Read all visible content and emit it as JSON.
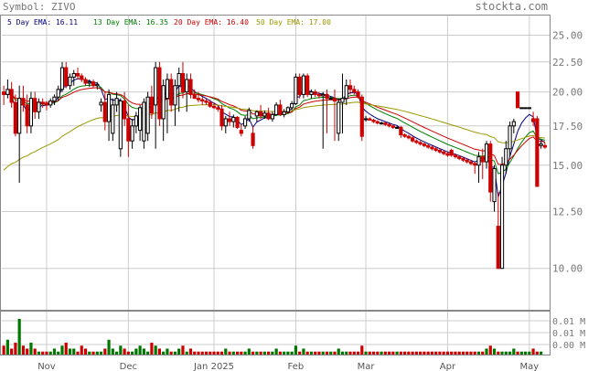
{
  "header": {
    "symbol_label": "Symbol: ZIVO",
    "brand": "stockta.com"
  },
  "legend": [
    {
      "label": "5 Day EMA: 16.11",
      "color": "#000080"
    },
    {
      "label": "13 Day EMA: 16.35",
      "color": "#008000"
    },
    {
      "label": "20 Day EMA: 16.40",
      "color": "#cc0000"
    },
    {
      "label": "50 Day EMA: 17.00",
      "color": "#999900"
    }
  ],
  "colors": {
    "up": "#000000",
    "down": "#cc0000",
    "vol_up": "#007700",
    "vol_down": "#cc0000",
    "grid": "#cccccc"
  },
  "chart_data": {
    "type": "candlestick",
    "price_axis": {
      "ticks": [
        10.0,
        12.5,
        15.0,
        17.5,
        20.0,
        22.5,
        25.0
      ],
      "tick_labels": [
        "10.00",
        "12.50",
        "15.00",
        "17.50",
        "20.00",
        "22.50",
        "25.00"
      ],
      "scale": "log",
      "range": [
        8.5,
        27.0
      ]
    },
    "volume_axis": {
      "tick_labels": [
        "0.01 M",
        "0.01 M",
        "0.00 M"
      ]
    },
    "x_axis": {
      "labels": [
        "Nov",
        "Dec",
        "Jan 2025",
        "Feb",
        "Mar",
        "Apr",
        "May"
      ],
      "label_index": [
        11,
        32,
        54,
        75,
        93,
        114,
        135
      ]
    },
    "candles": [
      [
        20.0,
        20.5,
        19.0,
        19.8
      ],
      [
        19.8,
        21.0,
        19.5,
        20.2
      ],
      [
        20.2,
        20.8,
        18.8,
        19.2
      ],
      [
        19.2,
        19.8,
        16.8,
        17.0
      ],
      [
        17.0,
        20.5,
        14.0,
        19.5
      ],
      [
        19.5,
        20.5,
        18.5,
        19.0
      ],
      [
        19.0,
        19.8,
        17.0,
        17.5
      ],
      [
        17.5,
        20.0,
        17.0,
        19.5
      ],
      [
        19.5,
        20.0,
        18.0,
        18.5
      ],
      [
        18.5,
        19.5,
        18.0,
        19.2
      ],
      [
        19.2,
        19.5,
        18.8,
        19.1
      ],
      [
        19.1,
        19.3,
        18.6,
        19.0
      ],
      [
        19.0,
        19.5,
        18.8,
        19.3
      ],
      [
        19.3,
        19.8,
        19.0,
        19.6
      ],
      [
        19.6,
        20.5,
        19.3,
        20.2
      ],
      [
        20.2,
        22.5,
        20.0,
        22.0
      ],
      [
        22.0,
        22.5,
        20.3,
        20.5
      ],
      [
        20.5,
        21.5,
        20.2,
        21.2
      ],
      [
        21.2,
        21.8,
        20.5,
        21.5
      ],
      [
        21.5,
        22.0,
        21.0,
        21.3
      ],
      [
        21.3,
        21.5,
        20.8,
        21.0
      ],
      [
        21.0,
        21.2,
        20.5,
        20.7
      ],
      [
        20.7,
        21.0,
        20.4,
        20.8
      ],
      [
        20.8,
        21.0,
        20.3,
        20.5
      ],
      [
        20.5,
        20.8,
        20.2,
        20.6
      ],
      [
        19.0,
        19.5,
        18.5,
        19.2
      ],
      [
        19.2,
        20.0,
        17.2,
        17.8
      ],
      [
        17.8,
        20.2,
        16.5,
        19.8
      ],
      [
        17.0,
        19.5,
        16.5,
        19.0
      ],
      [
        19.0,
        20.0,
        18.5,
        19.5
      ],
      [
        16.0,
        19.5,
        15.5,
        19.3
      ],
      [
        19.3,
        20.0,
        17.5,
        18.0
      ],
      [
        18.0,
        19.0,
        15.5,
        16.5
      ],
      [
        16.5,
        18.0,
        16.0,
        17.5
      ],
      [
        17.5,
        18.5,
        17.0,
        18.2
      ],
      [
        17.2,
        19.0,
        16.5,
        18.8
      ],
      [
        16.5,
        19.5,
        16.0,
        19.2
      ],
      [
        17.0,
        20.0,
        16.5,
        19.6
      ],
      [
        19.6,
        20.5,
        18.0,
        18.4
      ],
      [
        19.0,
        22.5,
        16.0,
        22.0
      ],
      [
        22.0,
        22.5,
        17.5,
        18.0
      ],
      [
        18.0,
        21.0,
        16.5,
        20.5
      ],
      [
        19.5,
        21.5,
        17.0,
        21.0
      ],
      [
        21.0,
        21.5,
        18.5,
        19.0
      ],
      [
        19.0,
        21.0,
        17.5,
        20.5
      ],
      [
        20.5,
        22.0,
        18.5,
        21.5
      ],
      [
        21.5,
        22.5,
        19.5,
        20.0
      ],
      [
        20.0,
        21.5,
        18.5,
        21.0
      ],
      [
        21.0,
        21.5,
        19.5,
        19.8
      ],
      [
        19.8,
        20.2,
        19.5,
        19.5
      ],
      [
        19.5,
        20.0,
        19.2,
        19.4
      ],
      [
        19.4,
        19.6,
        19.0,
        19.3
      ],
      [
        19.3,
        19.5,
        19.0,
        19.2
      ],
      [
        19.2,
        19.4,
        18.8,
        18.9
      ],
      [
        18.9,
        19.2,
        18.7,
        18.8
      ],
      [
        18.8,
        19.0,
        18.5,
        18.7
      ],
      [
        18.7,
        19.0,
        17.2,
        17.5
      ],
      [
        17.5,
        18.2,
        17.0,
        18.0
      ],
      [
        18.0,
        18.5,
        17.5,
        17.8
      ],
      [
        17.8,
        18.3,
        17.4,
        18.1
      ],
      [
        18.1,
        18.2,
        17.3,
        17.4
      ],
      [
        17.2,
        17.6,
        16.8,
        17.0
      ],
      [
        17.5,
        18.2,
        17.3,
        18.0
      ],
      [
        18.0,
        18.8,
        17.8,
        18.6
      ],
      [
        17.0,
        17.5,
        16.0,
        16.2
      ],
      [
        18.2,
        18.6,
        17.8,
        18.5
      ],
      [
        18.5,
        19.0,
        18.0,
        18.2
      ],
      [
        18.2,
        18.6,
        18.0,
        18.4
      ],
      [
        18.4,
        18.8,
        17.9,
        18.0
      ],
      [
        18.0,
        18.5,
        17.8,
        18.3
      ],
      [
        18.3,
        19.2,
        18.2,
        19.0
      ],
      [
        19.0,
        19.4,
        18.2,
        18.3
      ],
      [
        18.3,
        18.7,
        18.1,
        18.5
      ],
      [
        18.5,
        18.9,
        18.4,
        18.8
      ],
      [
        18.8,
        19.3,
        18.6,
        19.1
      ],
      [
        19.1,
        21.5,
        19.0,
        21.2
      ],
      [
        21.2,
        21.5,
        19.5,
        19.8
      ],
      [
        19.8,
        21.5,
        19.5,
        21.3
      ],
      [
        21.3,
        21.5,
        19.6,
        19.8
      ],
      [
        19.8,
        20.2,
        19.5,
        20.0
      ],
      [
        20.0,
        20.2,
        19.6,
        19.8
      ],
      [
        19.8,
        20.0,
        19.5,
        19.7
      ],
      [
        19.7,
        20.0,
        16.0,
        19.8
      ],
      [
        19.8,
        20.2,
        17.0,
        19.5
      ],
      [
        19.5,
        19.6,
        19.4,
        19.5
      ],
      [
        19.5,
        20.2,
        16.5,
        19.3
      ],
      [
        17.0,
        19.5,
        16.5,
        19.2
      ],
      [
        19.2,
        21.5,
        17.0,
        19.5
      ],
      [
        19.5,
        21.0,
        19.0,
        20.5
      ],
      [
        20.5,
        21.0,
        19.8,
        20.2
      ],
      [
        20.2,
        20.5,
        19.8,
        20.0
      ],
      [
        20.0,
        20.2,
        19.5,
        19.6
      ],
      [
        19.6,
        19.8,
        16.5,
        16.8
      ],
      [
        18.0,
        18.2,
        17.8,
        18.0
      ],
      [
        18.0,
        18.1,
        17.9,
        17.9
      ],
      [
        17.9,
        18.0,
        17.7,
        17.8
      ],
      [
        17.8,
        17.9,
        17.6,
        17.7
      ],
      [
        17.7,
        17.8,
        17.6,
        17.7
      ],
      [
        17.7,
        17.8,
        17.5,
        17.6
      ],
      [
        17.6,
        17.7,
        17.4,
        17.5
      ],
      [
        17.5,
        17.6,
        17.3,
        17.4
      ],
      [
        17.4,
        17.5,
        17.3,
        17.4
      ],
      [
        17.4,
        17.5,
        16.7,
        16.9
      ],
      [
        16.9,
        17.0,
        16.7,
        16.8
      ],
      [
        16.8,
        16.9,
        16.6,
        16.7
      ],
      [
        16.7,
        16.8,
        16.4,
        16.5
      ],
      [
        16.5,
        16.6,
        16.3,
        16.4
      ],
      [
        16.4,
        16.5,
        16.2,
        16.3
      ],
      [
        16.3,
        16.4,
        16.1,
        16.2
      ],
      [
        16.2,
        16.3,
        16.0,
        16.1
      ],
      [
        16.1,
        16.2,
        15.9,
        16.0
      ],
      [
        16.0,
        16.1,
        15.8,
        15.9
      ],
      [
        15.9,
        16.0,
        15.7,
        15.8
      ],
      [
        15.8,
        15.9,
        15.6,
        15.7
      ],
      [
        15.7,
        15.8,
        15.5,
        15.6
      ],
      [
        15.9,
        16.0,
        15.5,
        15.6
      ],
      [
        15.6,
        15.7,
        15.4,
        15.5
      ],
      [
        15.5,
        15.6,
        15.3,
        15.4
      ],
      [
        15.4,
        15.5,
        15.2,
        15.3
      ],
      [
        15.3,
        15.4,
        15.1,
        15.2
      ],
      [
        15.2,
        15.3,
        15.0,
        15.1
      ],
      [
        15.1,
        15.2,
        14.5,
        15.0
      ],
      [
        15.0,
        15.8,
        14.0,
        15.5
      ],
      [
        15.5,
        16.0,
        14.2,
        15.2
      ],
      [
        15.2,
        16.5,
        14.8,
        16.3
      ],
      [
        16.3,
        16.5,
        13.0,
        13.5
      ],
      [
        13.0,
        15.0,
        12.5,
        14.8
      ],
      [
        11.8,
        13.5,
        10.0,
        10.0
      ],
      [
        10.0,
        15.5,
        10.0,
        15.0
      ],
      [
        15.0,
        16.5,
        14.5,
        16.0
      ],
      [
        16.0,
        17.8,
        15.5,
        17.5
      ],
      [
        17.5,
        18.0,
        17.0,
        17.8
      ],
      [
        20.0,
        20.0,
        18.8,
        18.8
      ],
      [
        18.8,
        18.8,
        18.8,
        18.8
      ],
      [
        18.8,
        18.8,
        18.8,
        18.8
      ],
      [
        18.8,
        18.8,
        18.8,
        18.8
      ],
      [
        18.0,
        18.5,
        17.5,
        17.8
      ],
      [
        18.0,
        18.2,
        13.8,
        13.8
      ],
      [
        16.2,
        16.5,
        16.0,
        16.3
      ],
      [
        16.2,
        16.4,
        16.0,
        16.1
      ]
    ],
    "volume": [
      3,
      5,
      2,
      4,
      12,
      3,
      2,
      4,
      2,
      1,
      1,
      1,
      1,
      2,
      1,
      3,
      4,
      2,
      2,
      1,
      3,
      2,
      1,
      1,
      1,
      1,
      2,
      5,
      2,
      1,
      3,
      2,
      1,
      1,
      2,
      3,
      2,
      1,
      4,
      3,
      2,
      1,
      2,
      1,
      1,
      2,
      3,
      1,
      2,
      1,
      1,
      1,
      1,
      1,
      1,
      1,
      1,
      2,
      1,
      1,
      1,
      1,
      1,
      2,
      1,
      1,
      1,
      1,
      1,
      1,
      2,
      1,
      1,
      1,
      1,
      3,
      1,
      2,
      1,
      1,
      1,
      1,
      1,
      1,
      1,
      1,
      2,
      1,
      1,
      1,
      1,
      1,
      3,
      1,
      1,
      1,
      1,
      1,
      1,
      1,
      1,
      1,
      1,
      1,
      1,
      1,
      1,
      1,
      1,
      1,
      1,
      1,
      1,
      1,
      1,
      1,
      1,
      1,
      1,
      1,
      1,
      1,
      1,
      1,
      2,
      3,
      2,
      1,
      1,
      1,
      1,
      2,
      1,
      1,
      1,
      1,
      2,
      1,
      1
    ]
  }
}
